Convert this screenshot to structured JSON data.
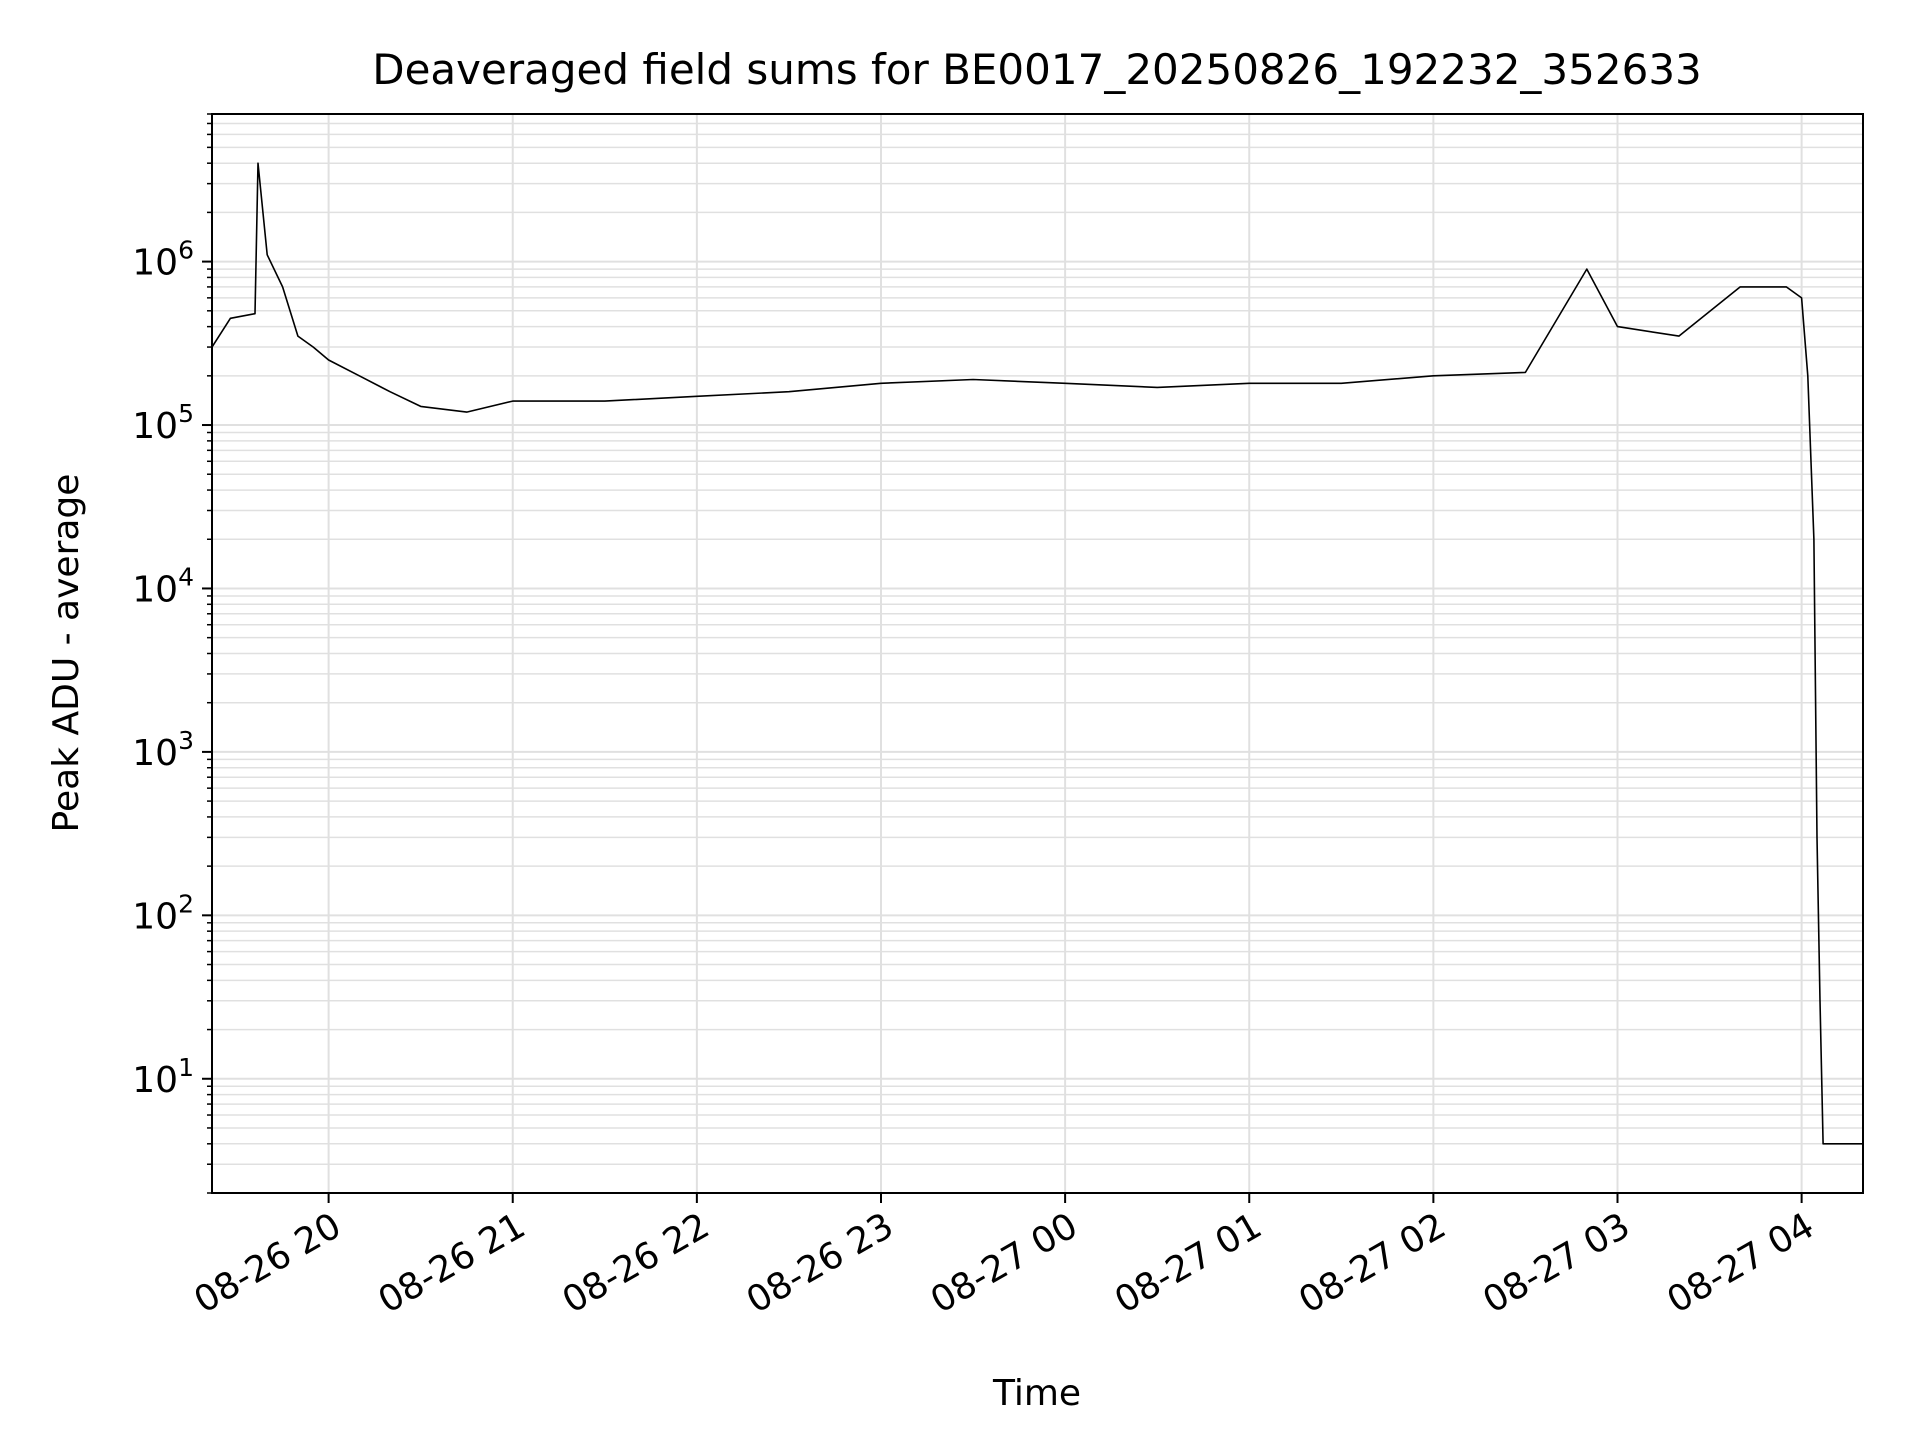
{
  "chart_data": {
    "type": "line",
    "title": "Deaveraged field sums for BE0017_20250826_192232_352633",
    "xlabel": "Time",
    "ylabel": "Peak ADU - average",
    "yscale": "log",
    "xlim": [
      "2025-08-26 19:22",
      "2025-08-27 04:20"
    ],
    "ylim": [
      2,
      8000000
    ],
    "grid": true,
    "line_color": "#000000",
    "grid_color": "#e0e0e0",
    "x_ticks": [
      {
        "t": "2025-08-26 20:00",
        "label": "08-26 20"
      },
      {
        "t": "2025-08-26 21:00",
        "label": "08-26 21"
      },
      {
        "t": "2025-08-26 22:00",
        "label": "08-26 22"
      },
      {
        "t": "2025-08-26 23:00",
        "label": "08-26 23"
      },
      {
        "t": "2025-08-27 00:00",
        "label": "08-27 00"
      },
      {
        "t": "2025-08-27 01:00",
        "label": "08-27 01"
      },
      {
        "t": "2025-08-27 02:00",
        "label": "08-27 02"
      },
      {
        "t": "2025-08-27 03:00",
        "label": "08-27 03"
      },
      {
        "t": "2025-08-27 04:00",
        "label": "08-27 04"
      }
    ],
    "y_ticks": [
      {
        "v": 10,
        "base": "10",
        "exp": "1"
      },
      {
        "v": 100,
        "base": "10",
        "exp": "2"
      },
      {
        "v": 1000,
        "base": "10",
        "exp": "3"
      },
      {
        "v": 10000,
        "base": "10",
        "exp": "4"
      },
      {
        "v": 100000,
        "base": "10",
        "exp": "5"
      },
      {
        "v": 1000000,
        "base": "10",
        "exp": "6"
      }
    ],
    "series": [
      {
        "x": [
          "2025-08-26 19:22",
          "2025-08-26 19:28",
          "2025-08-26 19:36",
          "2025-08-26 19:37",
          "2025-08-26 19:40",
          "2025-08-26 19:45",
          "2025-08-26 19:50",
          "2025-08-26 19:55",
          "2025-08-26 20:00",
          "2025-08-26 20:10",
          "2025-08-26 20:20",
          "2025-08-26 20:30",
          "2025-08-26 20:45",
          "2025-08-26 21:00",
          "2025-08-26 21:30",
          "2025-08-26 22:00",
          "2025-08-26 22:30",
          "2025-08-26 23:00",
          "2025-08-26 23:30",
          "2025-08-27 00:00",
          "2025-08-27 00:30",
          "2025-08-27 01:00",
          "2025-08-27 01:30",
          "2025-08-27 02:00",
          "2025-08-27 02:30",
          "2025-08-27 02:50",
          "2025-08-27 03:00",
          "2025-08-27 03:20",
          "2025-08-27 03:40",
          "2025-08-27 03:55",
          "2025-08-27 04:00",
          "2025-08-27 04:02",
          "2025-08-27 04:04",
          "2025-08-27 04:05",
          "2025-08-27 04:06",
          "2025-08-27 04:07",
          "2025-08-27 04:20"
        ],
        "y": [
          300000,
          450000,
          480000,
          4000000,
          1100000,
          700000,
          350000,
          300000,
          250000,
          200000,
          160000,
          130000,
          120000,
          140000,
          140000,
          150000,
          160000,
          180000,
          190000,
          180000,
          170000,
          180000,
          180000,
          200000,
          210000,
          900000,
          400000,
          350000,
          700000,
          700000,
          600000,
          200000,
          20000,
          300,
          30,
          4,
          4
        ]
      }
    ]
  }
}
